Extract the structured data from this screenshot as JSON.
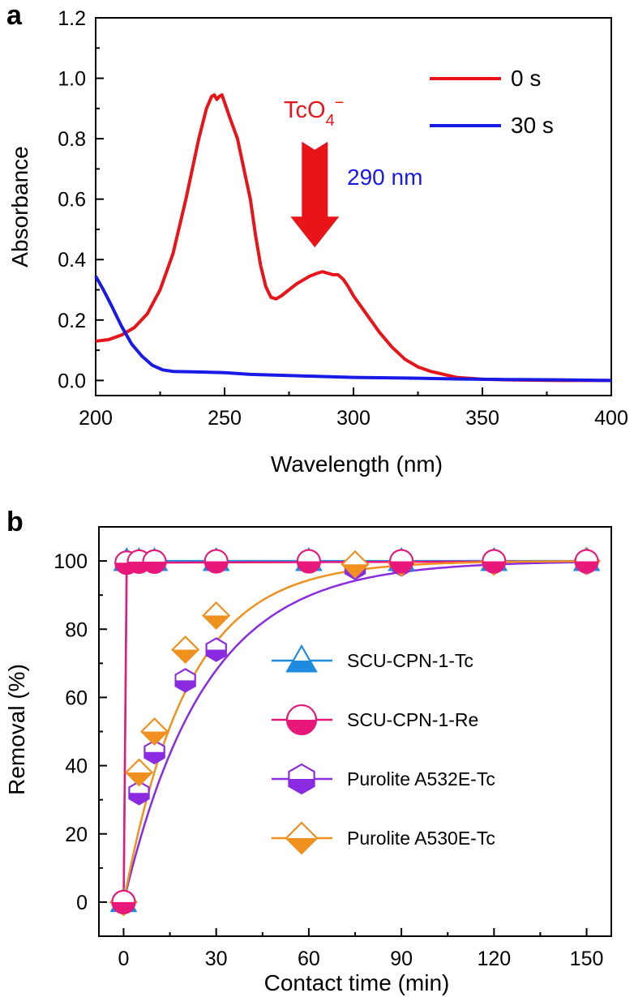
{
  "chart_data": [
    {
      "panel": "a",
      "type": "line",
      "xlabel": "Wavelength (nm)",
      "ylabel": "Absorbance",
      "xlim": [
        200,
        400
      ],
      "ylim": [
        -0.05,
        1.2
      ],
      "xticks": [
        200,
        250,
        300,
        350,
        400
      ],
      "yticks": [
        0.0,
        0.2,
        0.4,
        0.6,
        0.8,
        1.0,
        1.2
      ],
      "ytick_labels": [
        "0.0",
        "0.2",
        "0.4",
        "0.6",
        "0.8",
        "1.0",
        "1.2"
      ],
      "series": [
        {
          "name": "0 s",
          "color": "#e8141a",
          "x": [
            200,
            205,
            210,
            215,
            220,
            225,
            230,
            235,
            240,
            243,
            245,
            246,
            247,
            248,
            249,
            250,
            252,
            255,
            258,
            260,
            262,
            264,
            266,
            268,
            270,
            272,
            275,
            278,
            280,
            283,
            286,
            288,
            290,
            292,
            294,
            296,
            298,
            300,
            305,
            310,
            315,
            320,
            325,
            330,
            340,
            350,
            360,
            370,
            380,
            390,
            400
          ],
          "y": [
            0.13,
            0.135,
            0.15,
            0.175,
            0.22,
            0.3,
            0.42,
            0.6,
            0.8,
            0.9,
            0.94,
            0.945,
            0.93,
            0.94,
            0.945,
            0.92,
            0.87,
            0.8,
            0.68,
            0.6,
            0.48,
            0.38,
            0.31,
            0.275,
            0.27,
            0.28,
            0.3,
            0.32,
            0.33,
            0.345,
            0.355,
            0.36,
            0.355,
            0.35,
            0.35,
            0.335,
            0.31,
            0.28,
            0.22,
            0.16,
            0.11,
            0.07,
            0.045,
            0.03,
            0.01,
            0.004,
            0.002,
            0.001,
            0.0,
            0.0,
            0.0
          ]
        },
        {
          "name": "30 s",
          "color": "#1a1ae6",
          "x": [
            200,
            203,
            206,
            210,
            214,
            218,
            222,
            226,
            230,
            240,
            250,
            260,
            280,
            300,
            320,
            340,
            360,
            380,
            400
          ],
          "y": [
            0.345,
            0.3,
            0.25,
            0.18,
            0.12,
            0.08,
            0.05,
            0.035,
            0.03,
            0.028,
            0.026,
            0.02,
            0.015,
            0.01,
            0.008,
            0.005,
            0.003,
            0.002,
            0.0
          ]
        }
      ],
      "legend_position": "top-right",
      "annotations": {
        "ion_label": "TcO",
        "ion_subscript": "4",
        "ion_superscript": "−",
        "peak_label": "290 nm",
        "arrow_x": 285,
        "arrow_from": 0.79,
        "arrow_to": 0.44
      }
    },
    {
      "panel": "b",
      "type": "scatter",
      "xlabel": "Contact time (min)",
      "ylabel": "Removal (%)",
      "xlim": [
        -8,
        158
      ],
      "ylim": [
        -10,
        110
      ],
      "xticks": [
        0,
        30,
        60,
        90,
        120,
        150
      ],
      "yticks": [
        0,
        20,
        40,
        60,
        80,
        100
      ],
      "series": [
        {
          "name": "SCU-CPN-1-Tc",
          "color": "#1f8be0",
          "marker": "triangle",
          "x": [
            0,
            1,
            5,
            10,
            30,
            60,
            90,
            120,
            150
          ],
          "y": [
            0,
            100,
            100,
            100,
            100,
            100,
            100,
            100,
            100
          ]
        },
        {
          "name": "SCU-CPN-1-Re",
          "color": "#e8187a",
          "marker": "circle",
          "x": [
            0,
            1,
            5,
            10,
            30,
            60,
            90,
            120,
            150
          ],
          "y": [
            0,
            99.5,
            99.8,
            99.8,
            99.9,
            99.9,
            99.9,
            99.9,
            99.9
          ]
        },
        {
          "name": "Purolite A532E-Tc",
          "color": "#8a2be2",
          "marker": "hexagon",
          "x": [
            0,
            5,
            10,
            20,
            30,
            75,
            90,
            120,
            150
          ],
          "y": [
            0,
            32,
            44,
            65,
            74,
            98,
            99,
            99.5,
            99.5
          ]
        },
        {
          "name": "Purolite A530E-Tc",
          "color": "#f0901e",
          "marker": "diamond",
          "x": [
            0,
            5,
            10,
            20,
            30,
            75,
            90,
            120,
            150
          ],
          "y": [
            0,
            38,
            50,
            74,
            84,
            99,
            99.5,
            99.8,
            100
          ]
        }
      ],
      "legend_position": "center-right"
    }
  ]
}
